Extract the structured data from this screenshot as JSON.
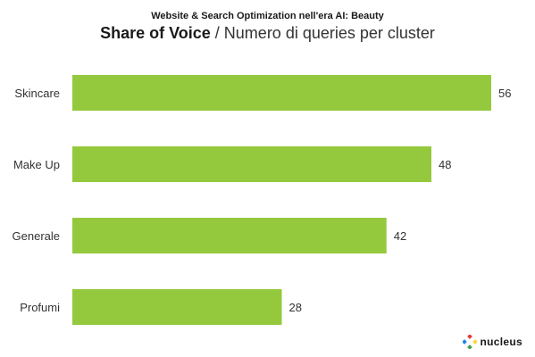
{
  "header": {
    "kicker": "Website & Search Optimization nell'era AI: Beauty",
    "title_strong": "Share of Voice",
    "title_rest": " / Numero di queries per cluster"
  },
  "brand": {
    "name": "nucleus",
    "icon": "nucleus-logo-icon"
  },
  "colors": {
    "bar": "#95c93d"
  },
  "chart_data": {
    "type": "bar",
    "orientation": "horizontal",
    "title": "Share of Voice / Numero di queries per cluster",
    "categories": [
      "Skincare",
      "Make Up",
      "Generale",
      "Profumi"
    ],
    "values": [
      56,
      48,
      42,
      28
    ],
    "data_labels": true,
    "grid": false,
    "xlim": [
      0,
      56
    ]
  }
}
